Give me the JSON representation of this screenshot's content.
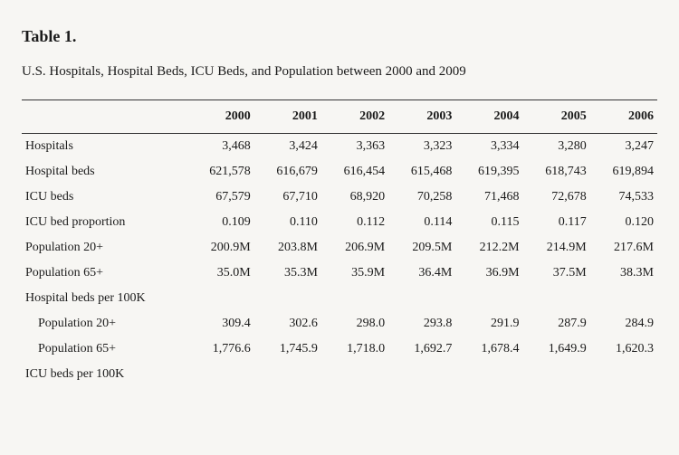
{
  "title": "Table 1.",
  "caption": "U.S. Hospitals, Hospital Beds, ICU Beds, and Population between 2000 and 2009",
  "background_color": "#f7f6f3",
  "text_color": "#1a1a1a",
  "border_color": "#333333",
  "font_family": "Georgia, 'Times New Roman', serif",
  "title_fontsize": 18,
  "caption_fontsize": 15,
  "body_fontsize": 14,
  "columns": [
    "",
    "2000",
    "2001",
    "2002",
    "2003",
    "2004",
    "2005",
    "2006"
  ],
  "rows": [
    {
      "label": "Hospitals",
      "indent": false,
      "cells": [
        "3,468",
        "3,424",
        "3,363",
        "3,323",
        "3,334",
        "3,280",
        "3,247"
      ]
    },
    {
      "label": "Hospital beds",
      "indent": false,
      "cells": [
        "621,578",
        "616,679",
        "616,454",
        "615,468",
        "619,395",
        "618,743",
        "619,894"
      ]
    },
    {
      "label": "ICU beds",
      "indent": false,
      "cells": [
        "67,579",
        "67,710",
        "68,920",
        "70,258",
        "71,468",
        "72,678",
        "74,533"
      ]
    },
    {
      "label": "ICU bed proportion",
      "indent": false,
      "cells": [
        "0.109",
        "0.110",
        "0.112",
        "0.114",
        "0.115",
        "0.117",
        "0.120"
      ]
    },
    {
      "label": "Population 20+",
      "indent": false,
      "cells": [
        "200.9M",
        "203.8M",
        "206.9M",
        "209.5M",
        "212.2M",
        "214.9M",
        "217.6M"
      ]
    },
    {
      "label": "Population 65+",
      "indent": false,
      "cells": [
        "35.0M",
        "35.3M",
        "35.9M",
        "36.4M",
        "36.9M",
        "37.5M",
        "38.3M"
      ]
    },
    {
      "label": "Hospital beds per 100K",
      "indent": false,
      "cells": [
        "",
        "",
        "",
        "",
        "",
        "",
        ""
      ]
    },
    {
      "label": "Population 20+",
      "indent": true,
      "cells": [
        "309.4",
        "302.6",
        "298.0",
        "293.8",
        "291.9",
        "287.9",
        "284.9"
      ]
    },
    {
      "label": "Population 65+",
      "indent": true,
      "cells": [
        "1,776.6",
        "1,745.9",
        "1,718.0",
        "1,692.7",
        "1,678.4",
        "1,649.9",
        "1,620.3"
      ]
    },
    {
      "label": "ICU beds per 100K",
      "indent": false,
      "cells": [
        "",
        "",
        "",
        "",
        "",
        "",
        ""
      ]
    }
  ]
}
